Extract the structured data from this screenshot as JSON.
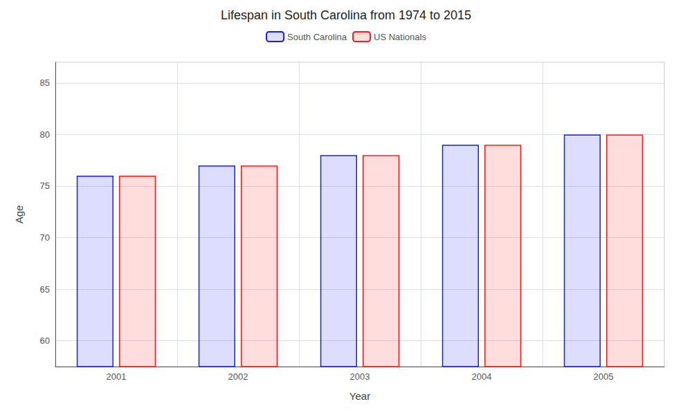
{
  "chart_data": {
    "type": "bar",
    "title": "Lifespan in South Carolina from 1974 to 2015",
    "xlabel": "Year",
    "ylabel": "Age",
    "categories": [
      "2001",
      "2002",
      "2003",
      "2004",
      "2005"
    ],
    "series": [
      {
        "name": "South Carolina",
        "color": "#1a1aff",
        "values": [
          76,
          77,
          78,
          79,
          80
        ]
      },
      {
        "name": "US Nationals",
        "color": "#ff1a1a",
        "values": [
          76,
          77,
          78,
          79,
          80
        ]
      }
    ],
    "ylim": [
      57.5,
      87
    ],
    "yticks": [
      60,
      65,
      70,
      75,
      80,
      85
    ],
    "grid": true,
    "legend": "upper center"
  }
}
